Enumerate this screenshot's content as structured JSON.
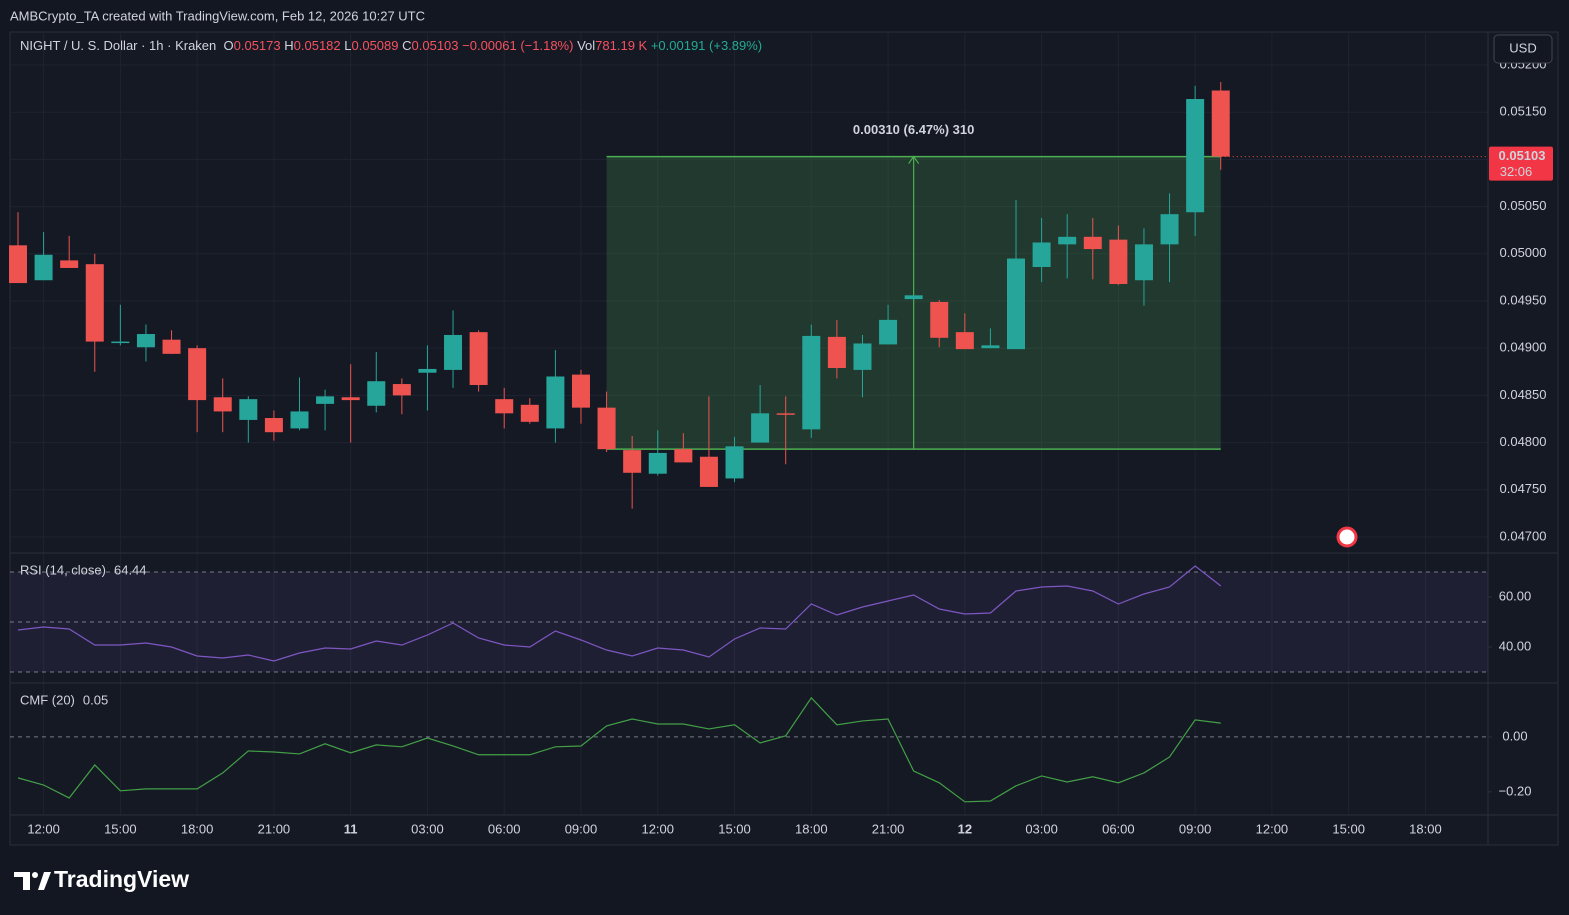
{
  "header": {
    "credit": "AMBCrypto_TA created with TradingView.com, Feb 12, 2026 10:27 UTC",
    "symbol": "NIGHT / U. S. Dollar · 1h · Kraken",
    "o": "O",
    "h": "H",
    "l": "L",
    "c": "C",
    "change": "−0.00061 (−1.18%)",
    "vol": "Vol",
    "vol_value": "781.19 K",
    "vol_change": "+0.00191 (+3.89%)",
    "currency": "USD",
    "countdown": "32:06"
  },
  "logo": "TradingView",
  "chart_data": {
    "type": "candlestick",
    "categories": [
      null,
      "12:00",
      null,
      null,
      "15:00",
      null,
      null,
      "18:00",
      null,
      null,
      "21:00",
      null,
      null,
      "11",
      null,
      null,
      "03:00",
      null,
      null,
      "06:00",
      null,
      null,
      "09:00",
      null,
      null,
      "12:00",
      null,
      null,
      "15:00",
      null,
      null,
      "18:00",
      null,
      null,
      "21:00",
      null,
      null,
      "12",
      null,
      null,
      "03:00",
      null,
      null,
      "06:00",
      null,
      null,
      "09:00",
      null,
      null,
      "12:00",
      null,
      null,
      "15:00",
      null,
      null,
      "18:00",
      null,
      null
    ],
    "open": [
      0.05009,
      0.04972,
      0.04993,
      0.04989,
      0.04906,
      0.04901,
      0.04909,
      0.049,
      0.04848,
      0.04824,
      0.04826,
      0.04815,
      0.04841,
      0.04848,
      0.04839,
      0.04862,
      0.04874,
      0.04877,
      0.04917,
      0.04846,
      0.0484,
      0.04815,
      0.04872,
      0.04837,
      0.04792,
      0.04767,
      0.04793,
      0.04785,
      0.04762,
      0.048,
      0.04831,
      0.04814,
      0.04912,
      0.04877,
      0.04904,
      0.04952,
      0.04949,
      0.04917,
      0.049,
      0.04899,
      0.04986,
      0.0501,
      0.05018,
      0.05015,
      0.04972,
      0.0501,
      0.05044,
      0.05173,
      null,
      null,
      null,
      null,
      null,
      null,
      null,
      null,
      null,
      null
    ],
    "high": [
      0.05044,
      0.05023,
      0.05019,
      0.05,
      0.04946,
      0.04925,
      0.04919,
      0.04903,
      0.04868,
      0.04849,
      0.04834,
      0.04869,
      0.04856,
      0.04883,
      0.04896,
      0.04868,
      0.04903,
      0.0494,
      0.04919,
      0.04858,
      0.04847,
      0.04898,
      0.04877,
      0.04854,
      0.04807,
      0.04813,
      0.0481,
      0.04849,
      0.04806,
      0.04861,
      0.04849,
      0.04925,
      0.0493,
      0.04914,
      0.04946,
      0.04956,
      0.04951,
      0.04937,
      0.04921,
      0.05057,
      0.05038,
      0.05042,
      0.05038,
      0.0503,
      0.05027,
      0.05064,
      0.05178,
      0.05182,
      null,
      null,
      null,
      null,
      null,
      null,
      null,
      null,
      null,
      null
    ],
    "low": [
      0.04969,
      0.04972,
      0.04985,
      0.04875,
      0.04903,
      0.04886,
      0.04894,
      0.04811,
      0.04811,
      0.048,
      0.04802,
      0.04813,
      0.04813,
      0.048,
      0.04832,
      0.0483,
      0.04834,
      0.04858,
      0.04854,
      0.04815,
      0.0482,
      0.048,
      0.0482,
      0.0479,
      0.0473,
      0.04765,
      0.04779,
      0.04753,
      0.04758,
      0.048,
      0.04777,
      0.04805,
      0.04868,
      0.04848,
      0.04904,
      0.04951,
      0.04901,
      0.04899,
      0.049,
      0.04899,
      0.0497,
      0.04974,
      0.04973,
      0.04967,
      0.04945,
      0.0497,
      0.05019,
      0.05089,
      null,
      null,
      null,
      null,
      null,
      null,
      null,
      null,
      null,
      null
    ],
    "close": [
      0.04969,
      0.04999,
      0.04985,
      0.04907,
      0.04907,
      0.04915,
      0.04894,
      0.04845,
      0.04833,
      0.04846,
      0.04811,
      0.04833,
      0.04849,
      0.04845,
      0.04865,
      0.0485,
      0.04878,
      0.04914,
      0.04861,
      0.04831,
      0.04822,
      0.0487,
      0.04837,
      0.04793,
      0.04768,
      0.04789,
      0.04779,
      0.04753,
      0.04796,
      0.04831,
      0.0483,
      0.04913,
      0.04879,
      0.04905,
      0.0493,
      0.04956,
      0.04911,
      0.04899,
      0.04903,
      0.04995,
      0.05012,
      0.05018,
      0.05005,
      0.04968,
      0.0501,
      0.05042,
      0.05164,
      0.05103,
      null,
      null,
      null,
      null,
      null,
      null,
      null,
      null,
      null,
      null
    ],
    "up_color": "#26a69a",
    "down_color": "#ef5350",
    "ylim": [
      0.04683,
      0.05235
    ],
    "yticks": [
      {
        "value": 0.047,
        "label": "0.04700"
      },
      {
        "value": 0.0475,
        "label": "0.04750"
      },
      {
        "value": 0.048,
        "label": "0.04800"
      },
      {
        "value": 0.0485,
        "label": "0.04850"
      },
      {
        "value": 0.049,
        "label": "0.04900"
      },
      {
        "value": 0.0495,
        "label": "0.04950"
      },
      {
        "value": 0.05,
        "label": "0.05000"
      },
      {
        "value": 0.0505,
        "label": "0.05050"
      },
      {
        "value": 0.051,
        "label": "0.05100"
      },
      {
        "value": 0.0515,
        "label": "0.05150"
      },
      {
        "value": 0.052,
        "label": "0.05200"
      }
    ],
    "grid": true,
    "measure": {
      "label": "0.00310 (6.47%) 310",
      "bottom": 0.04793,
      "top": 0.05103,
      "color": "#4caf50"
    },
    "rsi": {
      "title": "RSI (14, close)",
      "color": "#7e57c2",
      "ylim": [
        25.6,
        77.6
      ],
      "yticks": [
        {
          "value": 40,
          "label": "40.00"
        },
        {
          "value": 60,
          "label": "60.00"
        }
      ],
      "levels": [
        70,
        50,
        30
      ],
      "values": [
        46.8,
        48.0,
        47.2,
        40.8,
        40.8,
        41.6,
        40.0,
        36.4,
        35.6,
        36.8,
        34.4,
        37.6,
        39.6,
        39.2,
        42.4,
        40.8,
        44.8,
        49.6,
        43.6,
        40.8,
        40.0,
        46.4,
        42.8,
        38.8,
        36.4,
        39.6,
        38.8,
        36.0,
        43.2,
        47.6,
        47.2,
        57.2,
        52.8,
        56.0,
        58.4,
        60.8,
        55.2,
        53.2,
        53.6,
        62.4,
        64.0,
        64.4,
        62.4,
        57.2,
        61.2,
        64.0,
        72.4,
        64.44,
        null,
        null,
        null,
        null,
        null,
        null,
        null,
        null,
        null,
        null
      ]
    },
    "cmf": {
      "title": "CMF (20)",
      "color": "#43a047",
      "ylim": [
        -0.284,
        0.196
      ],
      "yticks": [
        {
          "value": -0.2,
          "label": "−0.20"
        },
        {
          "value": 0,
          "label": "0.00"
        }
      ],
      "levels": [
        0
      ],
      "values": [
        -0.149,
        -0.175,
        -0.222,
        -0.102,
        -0.196,
        -0.189,
        -0.189,
        -0.189,
        -0.131,
        -0.051,
        -0.055,
        -0.062,
        -0.025,
        -0.058,
        -0.029,
        -0.036,
        -0.004,
        -0.033,
        -0.065,
        -0.065,
        -0.065,
        -0.036,
        -0.033,
        0.04,
        0.065,
        0.047,
        0.047,
        0.029,
        0.044,
        -0.022,
        0.004,
        0.142,
        0.044,
        0.058,
        0.065,
        -0.124,
        -0.167,
        -0.236,
        -0.233,
        -0.178,
        -0.142,
        -0.164,
        -0.145,
        -0.167,
        -0.131,
        -0.073,
        0.062,
        0.05,
        null,
        null,
        null,
        null,
        null,
        null,
        null,
        null,
        null,
        null
      ]
    }
  }
}
